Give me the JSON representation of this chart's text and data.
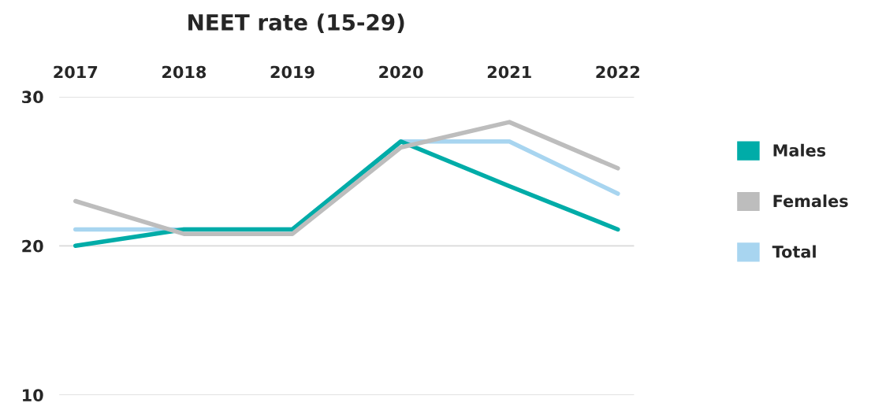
{
  "chart_data": {
    "type": "line",
    "title": "NEET rate (15-29)",
    "categories": [
      "2017",
      "2018",
      "2019",
      "2020",
      "2021",
      "2022"
    ],
    "series": [
      {
        "name": "Males",
        "color": "#00aca8",
        "values": [
          20.0,
          21.1,
          21.1,
          27.0,
          24.0,
          21.1
        ]
      },
      {
        "name": "Females",
        "color": "#bdbdbd",
        "values": [
          23.0,
          20.8,
          20.8,
          26.6,
          28.3,
          25.2
        ]
      },
      {
        "name": "Total",
        "color": "#a8d5f0",
        "values": [
          21.1,
          21.1,
          21.1,
          27.0,
          27.0,
          23.5
        ]
      }
    ],
    "ylim": [
      10,
      30
    ],
    "yticks": [
      10,
      20,
      30
    ],
    "grid": "y",
    "legend": "right",
    "marker": "none",
    "line_style": "solid"
  }
}
